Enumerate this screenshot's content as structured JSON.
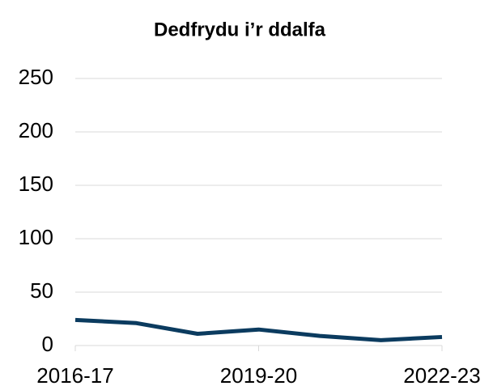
{
  "chart_data": {
    "type": "line",
    "title": "Dedfrydu i’r ddalfa",
    "categories": [
      "2016-17",
      null,
      null,
      "2019-20",
      null,
      null,
      "2022-23"
    ],
    "series": [
      {
        "name": "Dedfrydu i’r ddalfa",
        "color": "#0b3b5f",
        "values": [
          24,
          21,
          11,
          15,
          9,
          5,
          8
        ]
      }
    ],
    "ylim": [
      0,
      250
    ],
    "yticks": [
      0,
      50,
      100,
      150,
      200,
      250
    ],
    "grid": true
  }
}
